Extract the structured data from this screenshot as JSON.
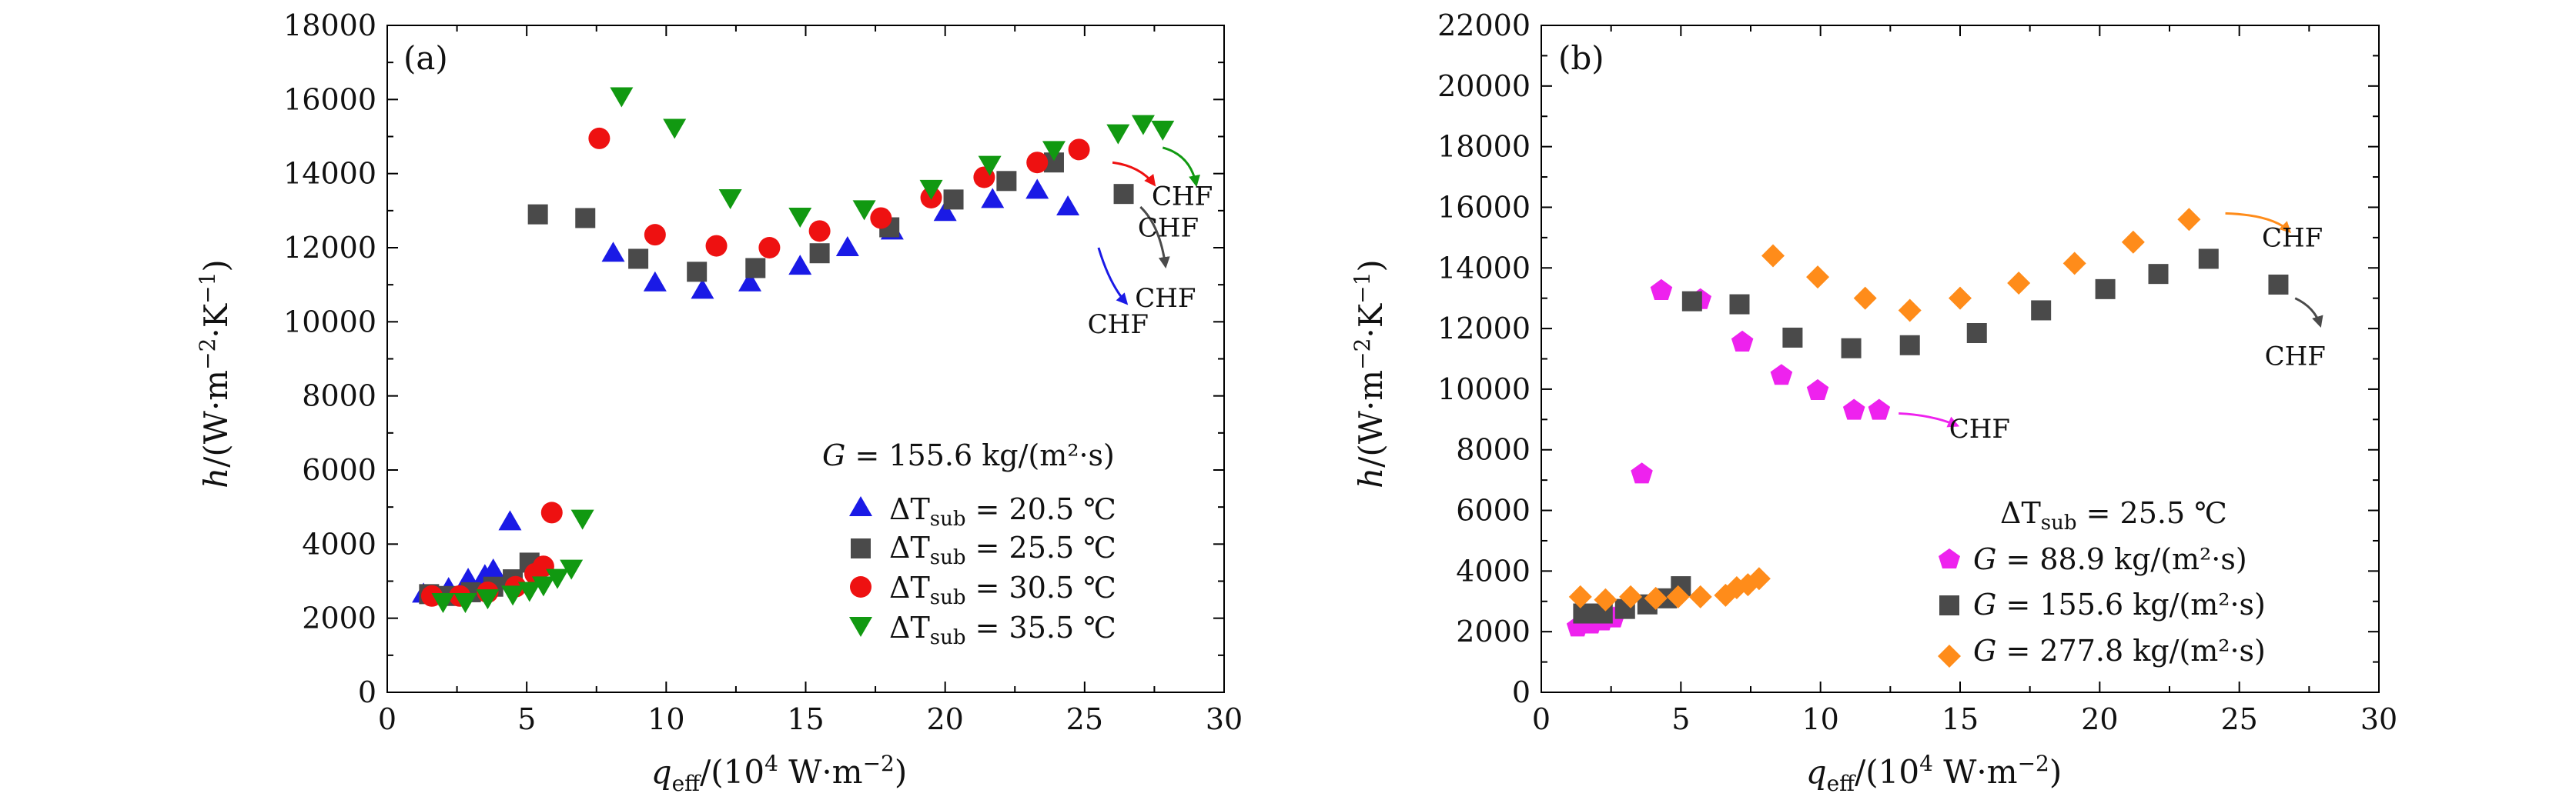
{
  "colors": {
    "blue": "#1a1ae6",
    "gray": "#4a4a4a",
    "red": "#ee1111",
    "green": "#119911",
    "magenta": "#ee22ee",
    "orange": "#ff8c1a",
    "axis": "#000000"
  },
  "chart_data": [
    {
      "id": "a",
      "type": "scatter",
      "panel_label": "(a)",
      "xlabel": "q_eff/(10^4 W·m^-2)",
      "ylabel": "h/(W·m^-2·K^-1)",
      "xlim": [
        0,
        30
      ],
      "ylim": [
        0,
        18000
      ],
      "xticks": [
        0,
        5,
        10,
        15,
        20,
        25,
        30
      ],
      "yticks": [
        0,
        2000,
        4000,
        6000,
        8000,
        10000,
        12000,
        14000,
        16000,
        18000
      ],
      "legend_title": "G = 155.6 kg/(m²·s)",
      "legend_position": "bottom-right",
      "series": [
        {
          "name": "ΔT_sub = 20.5 ℃",
          "marker": "triangle-up",
          "color": "blue",
          "points": [
            [
              1.3,
              2650
            ],
            [
              2.2,
              2800
            ],
            [
              2.9,
              3050
            ],
            [
              3.5,
              3150
            ],
            [
              3.8,
              3300
            ],
            [
              4.4,
              4600
            ],
            [
              8.1,
              11850
            ],
            [
              9.6,
              11050
            ],
            [
              11.3,
              10850
            ],
            [
              13.0,
              11050
            ],
            [
              14.8,
              11500
            ],
            [
              16.5,
              12000
            ],
            [
              18.1,
              12450
            ],
            [
              20.0,
              12950
            ],
            [
              21.7,
              13300
            ],
            [
              23.3,
              13550
            ],
            [
              24.4,
              13100
            ]
          ]
        },
        {
          "name": "ΔT_sub = 25.5 ℃",
          "marker": "square",
          "color": "gray",
          "points": [
            [
              1.5,
              2650
            ],
            [
              2.2,
              2600
            ],
            [
              3.0,
              2700
            ],
            [
              3.8,
              2850
            ],
            [
              4.5,
              3050
            ],
            [
              5.1,
              3500
            ],
            [
              5.4,
              12900
            ],
            [
              7.1,
              12800
            ],
            [
              9.0,
              11700
            ],
            [
              11.1,
              11350
            ],
            [
              13.2,
              11450
            ],
            [
              15.5,
              11850
            ],
            [
              18.0,
              12550
            ],
            [
              20.3,
              13300
            ],
            [
              22.2,
              13800
            ],
            [
              23.9,
              14300
            ],
            [
              26.4,
              13450
            ]
          ]
        },
        {
          "name": "ΔT_sub = 30.5 ℃",
          "marker": "circle",
          "color": "red",
          "points": [
            [
              1.6,
              2600
            ],
            [
              2.6,
              2600
            ],
            [
              3.6,
              2700
            ],
            [
              4.6,
              2850
            ],
            [
              5.3,
              3200
            ],
            [
              5.6,
              3400
            ],
            [
              5.9,
              4850
            ],
            [
              7.6,
              14950
            ],
            [
              9.6,
              12350
            ],
            [
              11.8,
              12050
            ],
            [
              13.7,
              12000
            ],
            [
              15.5,
              12450
            ],
            [
              17.7,
              12800
            ],
            [
              19.5,
              13350
            ],
            [
              21.4,
              13900
            ],
            [
              23.3,
              14300
            ],
            [
              24.8,
              14650
            ]
          ]
        },
        {
          "name": "ΔT_sub = 35.5 ℃",
          "marker": "triangle-down",
          "color": "green",
          "points": [
            [
              2.0,
              2450
            ],
            [
              2.8,
              2450
            ],
            [
              3.6,
              2550
            ],
            [
              4.5,
              2650
            ],
            [
              5.1,
              2750
            ],
            [
              5.6,
              2900
            ],
            [
              6.1,
              3100
            ],
            [
              6.6,
              3350
            ],
            [
              7.0,
              4700
            ],
            [
              8.4,
              16100
            ],
            [
              10.3,
              15250
            ],
            [
              12.3,
              13350
            ],
            [
              14.8,
              12850
            ],
            [
              17.1,
              13050
            ],
            [
              19.5,
              13600
            ],
            [
              21.6,
              14250
            ],
            [
              23.9,
              14650
            ],
            [
              26.2,
              15100
            ],
            [
              27.1,
              15350
            ],
            [
              27.8,
              15200
            ]
          ]
        }
      ],
      "annotations": [
        {
          "text": "CHF",
          "color": "blue",
          "text_at": [
            26.2,
            9700
          ],
          "arrow": [
            [
              25.5,
              12000
            ],
            [
              25.9,
              11000
            ],
            [
              26.5,
              10500
            ]
          ]
        },
        {
          "text": "CHF",
          "color": "gray",
          "text_at": [
            27.9,
            10400
          ],
          "arrow": [
            [
              27.0,
              13100
            ],
            [
              27.7,
              12600
            ],
            [
              27.9,
              11500
            ]
          ]
        },
        {
          "text": "CHF",
          "color": "gray",
          "text_at": [
            28.0,
            12300
          ],
          "arrow": []
        },
        {
          "text": "CHF",
          "color": "red",
          "text_at": [
            28.5,
            13150
          ],
          "arrow": [
            [
              26.0,
              14300
            ],
            [
              27.0,
              14200
            ],
            [
              27.5,
              13700
            ]
          ]
        },
        {
          "text": "CHF",
          "color": "green",
          "text_at": [
            28.5,
            13150
          ],
          "arrow": [
            [
              27.8,
              14700
            ],
            [
              28.8,
              14500
            ],
            [
              29.0,
              13700
            ]
          ]
        }
      ]
    },
    {
      "id": "b",
      "type": "scatter",
      "panel_label": "(b)",
      "xlabel": "q_eff/(10^4 W·m^-2)",
      "ylabel": "h/(W·m^-2·K^-1)",
      "xlim": [
        0,
        30
      ],
      "ylim": [
        0,
        22000
      ],
      "xticks": [
        0,
        5,
        10,
        15,
        20,
        25,
        30
      ],
      "yticks": [
        0,
        2000,
        4000,
        6000,
        8000,
        10000,
        12000,
        14000,
        16000,
        18000,
        20000,
        22000
      ],
      "legend_title": "ΔT_sub = 25.5 ℃",
      "legend_position": "bottom-right",
      "series": [
        {
          "name": "G = 88.9 kg/(m²·s)",
          "marker": "pentagon",
          "color": "magenta",
          "points": [
            [
              1.3,
              2150
            ],
            [
              1.8,
              2250
            ],
            [
              2.2,
              2350
            ],
            [
              2.6,
              2450
            ],
            [
              3.6,
              7200
            ],
            [
              4.3,
              13250
            ],
            [
              5.7,
              12950
            ],
            [
              7.2,
              11550
            ],
            [
              8.6,
              10450
            ],
            [
              9.9,
              9950
            ],
            [
              11.2,
              9300
            ],
            [
              12.1,
              9300
            ]
          ]
        },
        {
          "name": "G = 155.6 kg/(m²·s)",
          "marker": "square",
          "color": "gray",
          "points": [
            [
              1.5,
              2600
            ],
            [
              2.2,
              2600
            ],
            [
              3.0,
              2750
            ],
            [
              3.8,
              2900
            ],
            [
              4.5,
              3100
            ],
            [
              5.0,
              3500
            ],
            [
              5.4,
              12900
            ],
            [
              7.1,
              12800
            ],
            [
              9.0,
              11700
            ],
            [
              11.1,
              11350
            ],
            [
              13.2,
              11450
            ],
            [
              15.6,
              11850
            ],
            [
              17.9,
              12600
            ],
            [
              20.2,
              13300
            ],
            [
              22.1,
              13800
            ],
            [
              23.9,
              14300
            ],
            [
              26.4,
              13450
            ]
          ]
        },
        {
          "name": "G = 277.8 kg/(m²·s)",
          "marker": "diamond",
          "color": "orange",
          "points": [
            [
              1.4,
              3150
            ],
            [
              2.3,
              3050
            ],
            [
              3.2,
              3150
            ],
            [
              4.1,
              3100
            ],
            [
              4.9,
              3150
            ],
            [
              5.7,
              3150
            ],
            [
              6.6,
              3200
            ],
            [
              7.0,
              3450
            ],
            [
              7.4,
              3550
            ],
            [
              7.8,
              3750
            ],
            [
              8.3,
              14400
            ],
            [
              9.9,
              13700
            ],
            [
              11.6,
              13000
            ],
            [
              13.2,
              12600
            ],
            [
              15.0,
              13000
            ],
            [
              17.1,
              13500
            ],
            [
              19.1,
              14150
            ],
            [
              21.2,
              14850
            ],
            [
              23.2,
              15600
            ]
          ]
        }
      ],
      "annotations": [
        {
          "text": "CHF",
          "color": "magenta",
          "text_at": [
            15.7,
            8400
          ],
          "arrow": [
            [
              12.8,
              9200
            ],
            [
              14.0,
              9150
            ],
            [
              14.9,
              8800
            ]
          ]
        },
        {
          "text": "CHF",
          "color": "orange",
          "text_at": [
            26.9,
            14700
          ],
          "arrow": [
            [
              24.5,
              15800
            ],
            [
              26.2,
              15750
            ],
            [
              26.8,
              15200
            ]
          ]
        },
        {
          "text": "CHF",
          "color": "gray",
          "text_at": [
            27.0,
            10800
          ],
          "arrow": [
            [
              27.0,
              13000
            ],
            [
              27.7,
              12700
            ],
            [
              27.9,
              12100
            ]
          ]
        }
      ]
    }
  ]
}
